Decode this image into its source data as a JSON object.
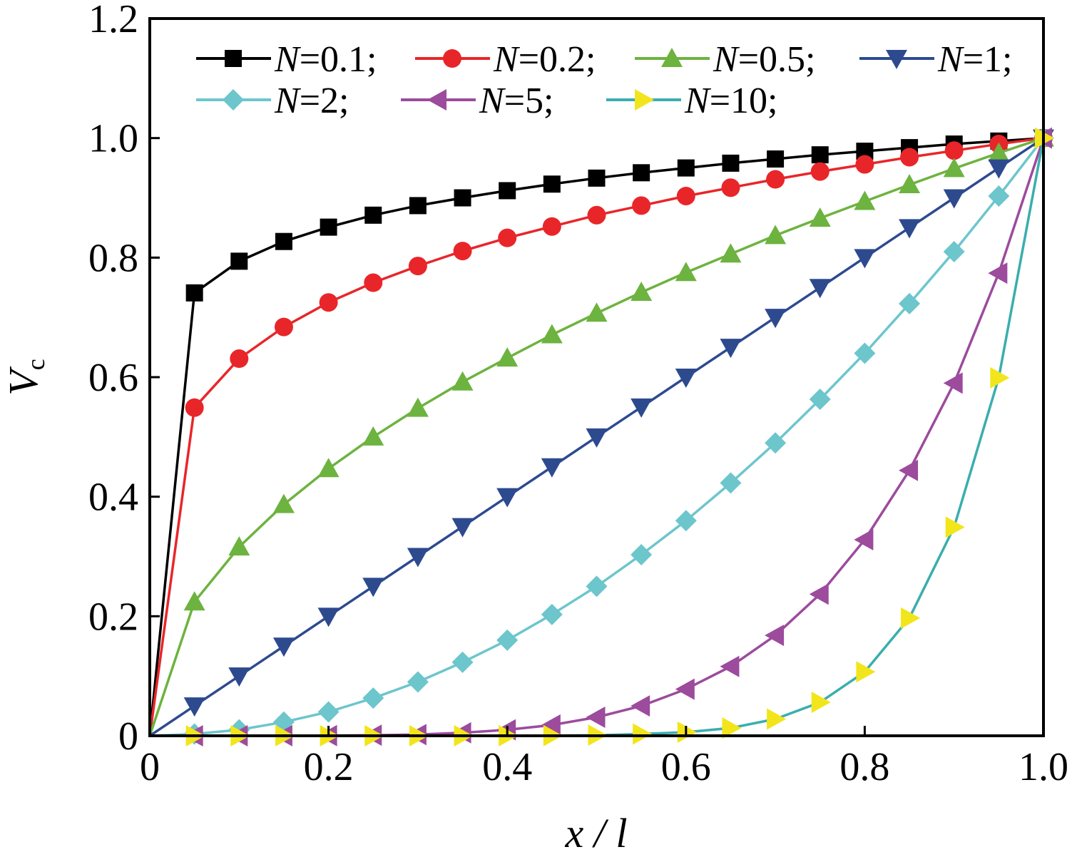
{
  "chart_data": {
    "type": "line",
    "xlabel": "x / l",
    "ylabel": {
      "main": "V",
      "sub": "c"
    },
    "xlim": [
      0,
      1.0
    ],
    "ylim": [
      0,
      1.2
    ],
    "xticks": [
      0,
      0.2,
      0.4,
      0.6,
      0.8,
      1.0
    ],
    "xtick_labels": [
      "0",
      "0.2",
      "0.4",
      "0.6",
      "0.8",
      "1.0"
    ],
    "yticks": [
      0,
      0.2,
      0.4,
      0.6,
      0.8,
      1.0,
      1.2
    ],
    "ytick_labels": [
      "0",
      "0.2",
      "0.4",
      "0.6",
      "0.8",
      "1.0",
      "1.2"
    ],
    "grid": false,
    "legend_position": "top",
    "x": [
      0,
      0.05,
      0.1,
      0.15,
      0.2,
      0.25,
      0.3,
      0.35,
      0.4,
      0.45,
      0.5,
      0.55,
      0.6,
      0.65,
      0.7,
      0.75,
      0.8,
      0.85,
      0.9,
      0.95,
      1.0
    ],
    "series": [
      {
        "name": "N=0.1;",
        "label_var": "N",
        "label_rest": "=0.1;",
        "color": "#000000",
        "marker": "square",
        "values": [
          0,
          0.741,
          0.794,
          0.827,
          0.851,
          0.871,
          0.887,
          0.9,
          0.912,
          0.923,
          0.933,
          0.942,
          0.95,
          0.958,
          0.965,
          0.972,
          0.978,
          0.984,
          0.99,
          0.995,
          1.0
        ]
      },
      {
        "name": "N=0.2;",
        "label_var": "N",
        "label_rest": "=0.2;",
        "color": "#e8262a",
        "marker": "circle",
        "values": [
          0,
          0.549,
          0.631,
          0.684,
          0.725,
          0.758,
          0.786,
          0.811,
          0.833,
          0.852,
          0.871,
          0.887,
          0.903,
          0.917,
          0.931,
          0.944,
          0.956,
          0.968,
          0.979,
          0.99,
          1.0
        ]
      },
      {
        "name": "N=0.5;",
        "label_var": "N",
        "label_rest": "=0.5;",
        "color": "#6db33f",
        "marker": "triangle-up",
        "values": [
          0,
          0.224,
          0.316,
          0.387,
          0.447,
          0.5,
          0.548,
          0.592,
          0.632,
          0.671,
          0.707,
          0.742,
          0.775,
          0.806,
          0.837,
          0.866,
          0.894,
          0.922,
          0.949,
          0.975,
          1.0
        ]
      },
      {
        "name": "N=1;",
        "label_var": "N",
        "label_rest": "=1;",
        "color": "#2d4a8f",
        "marker": "triangle-down",
        "values": [
          0,
          0.05,
          0.1,
          0.15,
          0.2,
          0.25,
          0.3,
          0.35,
          0.4,
          0.45,
          0.5,
          0.55,
          0.6,
          0.65,
          0.7,
          0.75,
          0.8,
          0.85,
          0.9,
          0.95,
          1.0
        ]
      },
      {
        "name": "N=2;",
        "label_var": "N",
        "label_rest": "=2;",
        "color": "#6cc6cc",
        "marker": "diamond",
        "values": [
          0,
          0.003,
          0.01,
          0.023,
          0.04,
          0.063,
          0.09,
          0.123,
          0.16,
          0.203,
          0.25,
          0.303,
          0.36,
          0.423,
          0.49,
          0.563,
          0.64,
          0.723,
          0.81,
          0.903,
          1.0
        ]
      },
      {
        "name": "N=5;",
        "label_var": "N",
        "label_rest": "=5;",
        "color": "#9c4b9d",
        "marker": "triangle-left",
        "values": [
          0,
          0,
          0,
          0.0001,
          0.0003,
          0.001,
          0.002,
          0.005,
          0.01,
          0.018,
          0.031,
          0.05,
          0.078,
          0.116,
          0.168,
          0.237,
          0.328,
          0.444,
          0.59,
          0.774,
          1.0
        ]
      },
      {
        "name": "N=10;",
        "label_var": "N",
        "label_rest": "=10;",
        "color": "#3aaead",
        "marker_color": "#f2e51b",
        "marker": "triangle-right",
        "values": [
          0,
          0,
          0,
          0,
          0,
          0,
          0,
          0,
          0.0001,
          0.0003,
          0.001,
          0.003,
          0.006,
          0.013,
          0.028,
          0.056,
          0.107,
          0.197,
          0.349,
          0.599,
          1.0
        ]
      }
    ]
  }
}
